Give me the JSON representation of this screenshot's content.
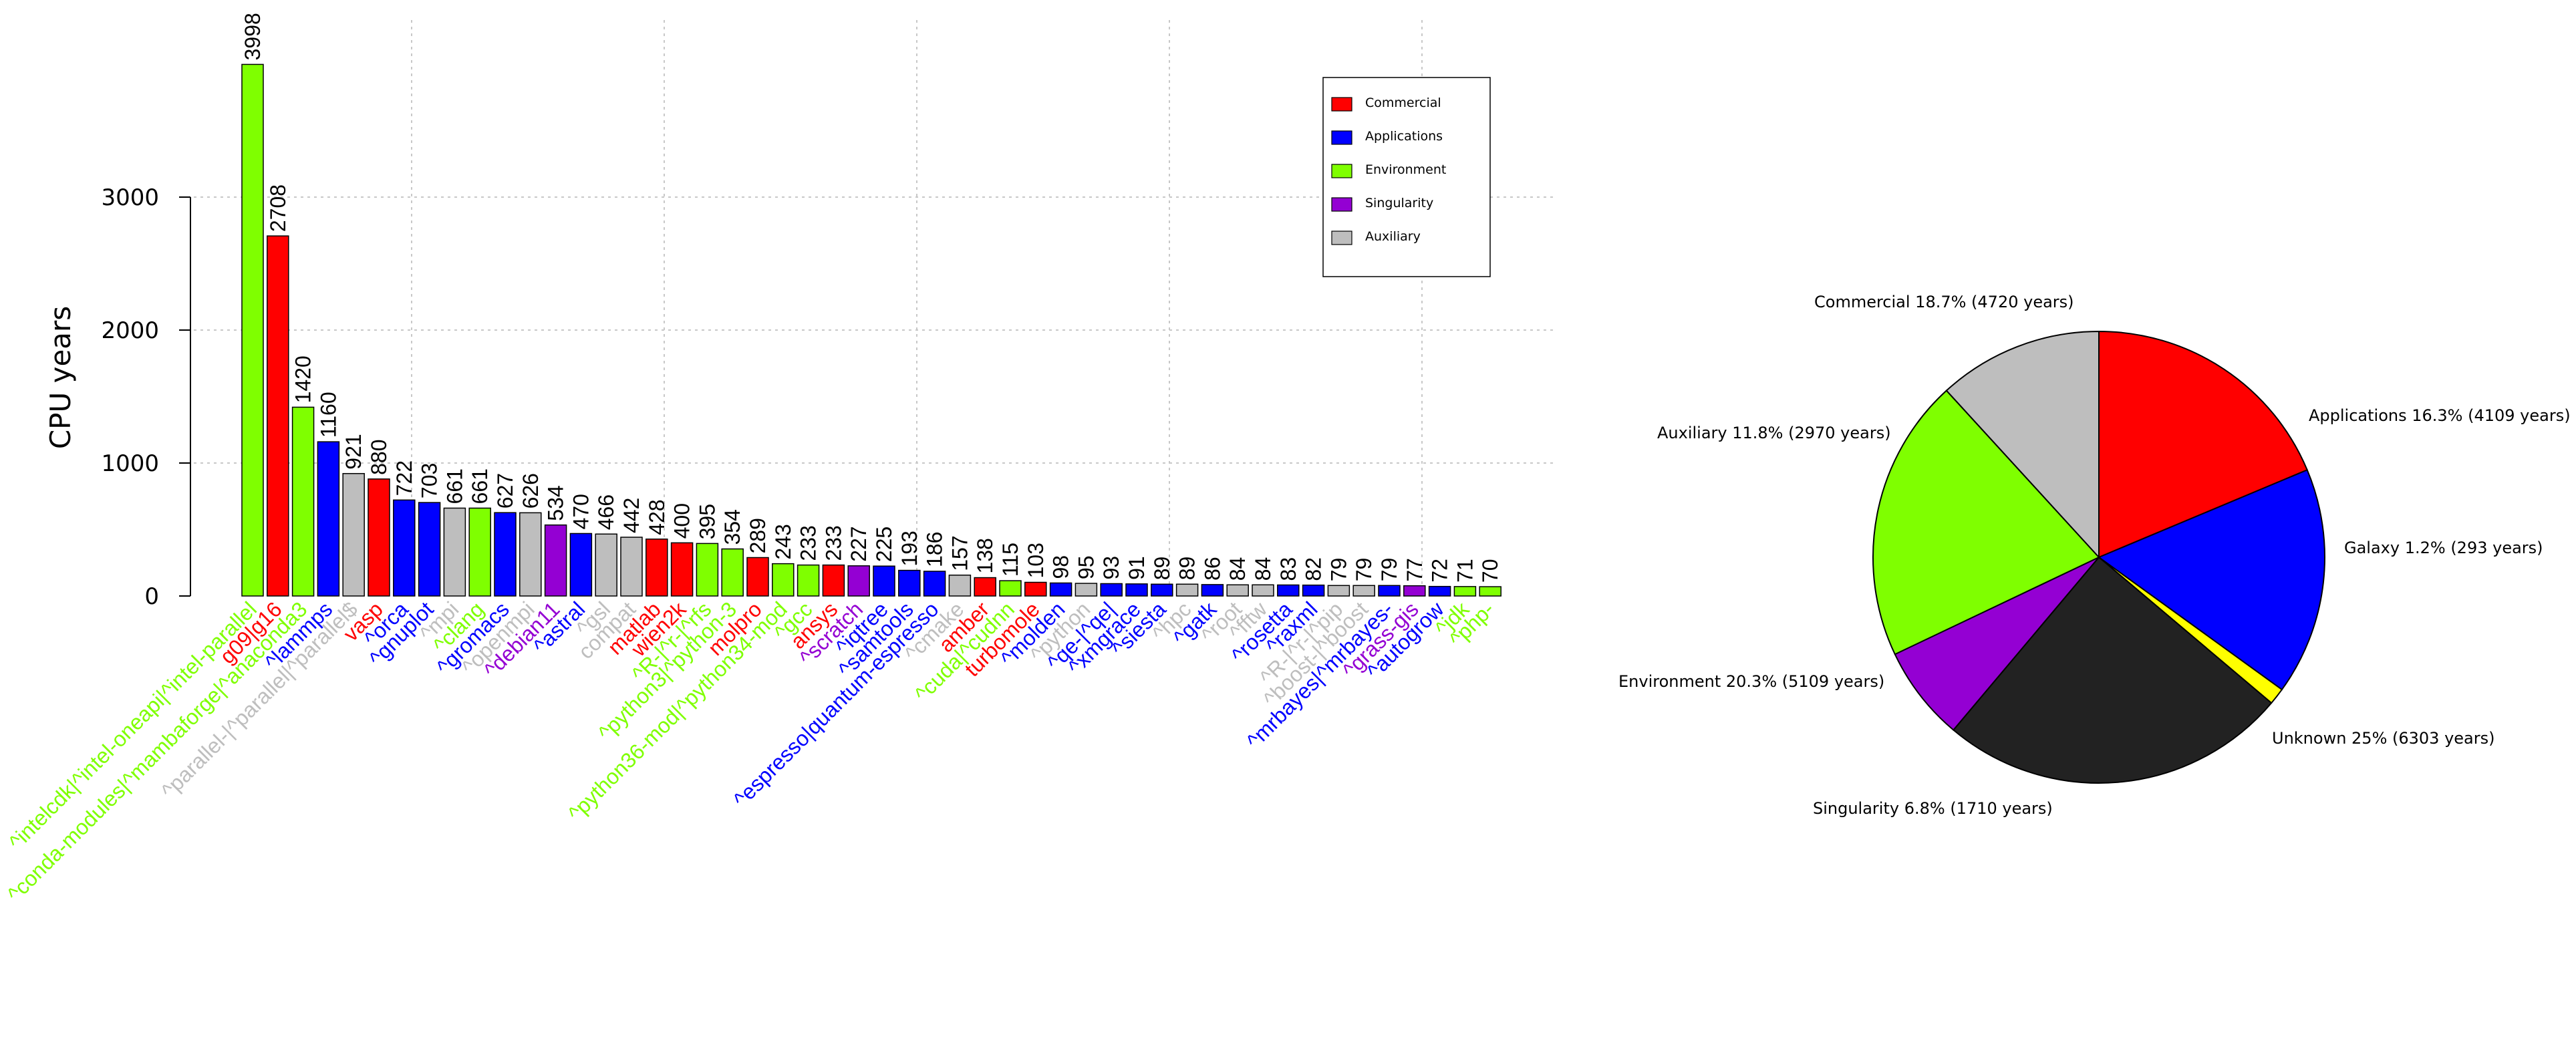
{
  "colors": {
    "Commercial": "#ff0000",
    "Applications": "#0000ff",
    "Environment": "#7fff00",
    "Singularity": "#9400d3",
    "Auxiliary": "#bebebe",
    "Galaxy": "#ffff00",
    "Unknown": "#222222"
  },
  "chart_data": [
    {
      "type": "bar",
      "ylabel": "CPU years",
      "ylim": [
        0,
        4000
      ],
      "yticks": [
        0,
        1000,
        2000,
        3000
      ],
      "grid": true,
      "legend_position": "top-right",
      "legend": [
        "Commercial",
        "Applications",
        "Environment",
        "Singularity",
        "Auxiliary"
      ],
      "categories": [
        "^intelcdk|^intel-oneapi|^intel-parallel",
        "g09|g16",
        "^conda-modules|^mambaforge|^anaconda3",
        "^lammps",
        "^parallel-|^parallel|^parallel$",
        "vasp",
        "^orca",
        "^gnuplot",
        "^mpi",
        "^clang",
        "^gromacs",
        "^openmpi",
        "^debian11",
        "^astral",
        "^gsl",
        "compat",
        "matlab",
        "wien2k",
        "^R-|^r-|^rfs",
        "^python3|^python-3",
        "molpro",
        "^python36-mod|^python34-mod",
        "^gcc",
        "ansys",
        "^scratch",
        "^iqtree",
        "^samtools",
        "^espresso|quantum-espresso",
        "^cmake",
        "amber",
        "^cuda|^cudnn",
        "turbomole",
        "^molden",
        "^python",
        "^qe-|^qe|",
        "^xmgrace",
        "^siesta",
        "^hpc",
        "^gatk",
        "^root",
        "^fftw",
        "^rosetta",
        "^raxml",
        "^R-|^r-|^pip",
        "^boost-|^boost",
        "^mrbayes|^mrbayes-",
        "^grass-gis",
        "^autogrow",
        "^jdk",
        "^php-"
      ],
      "values": [
        3998,
        2708,
        1420,
        1160,
        921,
        880,
        722,
        703,
        661,
        661,
        627,
        626,
        534,
        470,
        466,
        442,
        428,
        400,
        395,
        354,
        289,
        243,
        233,
        233,
        227,
        225,
        193,
        186,
        157,
        138,
        115,
        103,
        98,
        95,
        93,
        91,
        89,
        89,
        86,
        84,
        84,
        83,
        82,
        79,
        79,
        79,
        77,
        72,
        71,
        70
      ],
      "value_labels": [
        "3998",
        "2708",
        "1420",
        "1160",
        "921",
        "880",
        "722",
        "703",
        "661",
        "661",
        "627",
        "626",
        "534",
        "470",
        "466",
        "442",
        "428",
        "400",
        "395",
        "354",
        "289",
        "243",
        "233",
        "233",
        "227",
        "225",
        "193",
        "186",
        "157",
        "138",
        "115",
        "103",
        "98",
        "95",
        "93",
        "91",
        "89",
        "89",
        "86",
        "84",
        "84",
        "83",
        "82",
        "79",
        "79",
        "79",
        "77",
        "72",
        "71",
        "70"
      ],
      "groups": [
        "Environment",
        "Commercial",
        "Environment",
        "Applications",
        "Auxiliary",
        "Commercial",
        "Applications",
        "Applications",
        "Auxiliary",
        "Environment",
        "Applications",
        "Auxiliary",
        "Singularity",
        "Applications",
        "Auxiliary",
        "Auxiliary",
        "Commercial",
        "Commercial",
        "Environment",
        "Environment",
        "Commercial",
        "Environment",
        "Environment",
        "Commercial",
        "Singularity",
        "Applications",
        "Applications",
        "Applications",
        "Auxiliary",
        "Commercial",
        "Environment",
        "Commercial",
        "Applications",
        "Auxiliary",
        "Applications",
        "Applications",
        "Applications",
        "Auxiliary",
        "Applications",
        "Auxiliary",
        "Auxiliary",
        "Applications",
        "Applications",
        "Auxiliary",
        "Auxiliary",
        "Applications",
        "Singularity",
        "Applications",
        "Environment",
        "Environment"
      ]
    },
    {
      "type": "pie",
      "slices": [
        {
          "name": "Commercial",
          "percent": 18.7,
          "years": 4720,
          "label": "Commercial 18.7% (4720 years)"
        },
        {
          "name": "Applications",
          "percent": 16.3,
          "years": 4109,
          "label": "Applications 16.3% (4109 years)"
        },
        {
          "name": "Galaxy",
          "percent": 1.2,
          "years": 293,
          "label": "Galaxy 1.2% (293 years)"
        },
        {
          "name": "Unknown",
          "percent": 25,
          "years": 6303,
          "label": "Unknown 25% (6303 years)"
        },
        {
          "name": "Singularity",
          "percent": 6.8,
          "years": 1710,
          "label": "Singularity 6.8% (1710 years)"
        },
        {
          "name": "Environment",
          "percent": 20.3,
          "years": 5109,
          "label": "Environment 20.3% (5109 years)"
        },
        {
          "name": "Auxiliary",
          "percent": 11.8,
          "years": 2970,
          "label": "Auxiliary 11.8% (2970 years)"
        }
      ]
    }
  ]
}
